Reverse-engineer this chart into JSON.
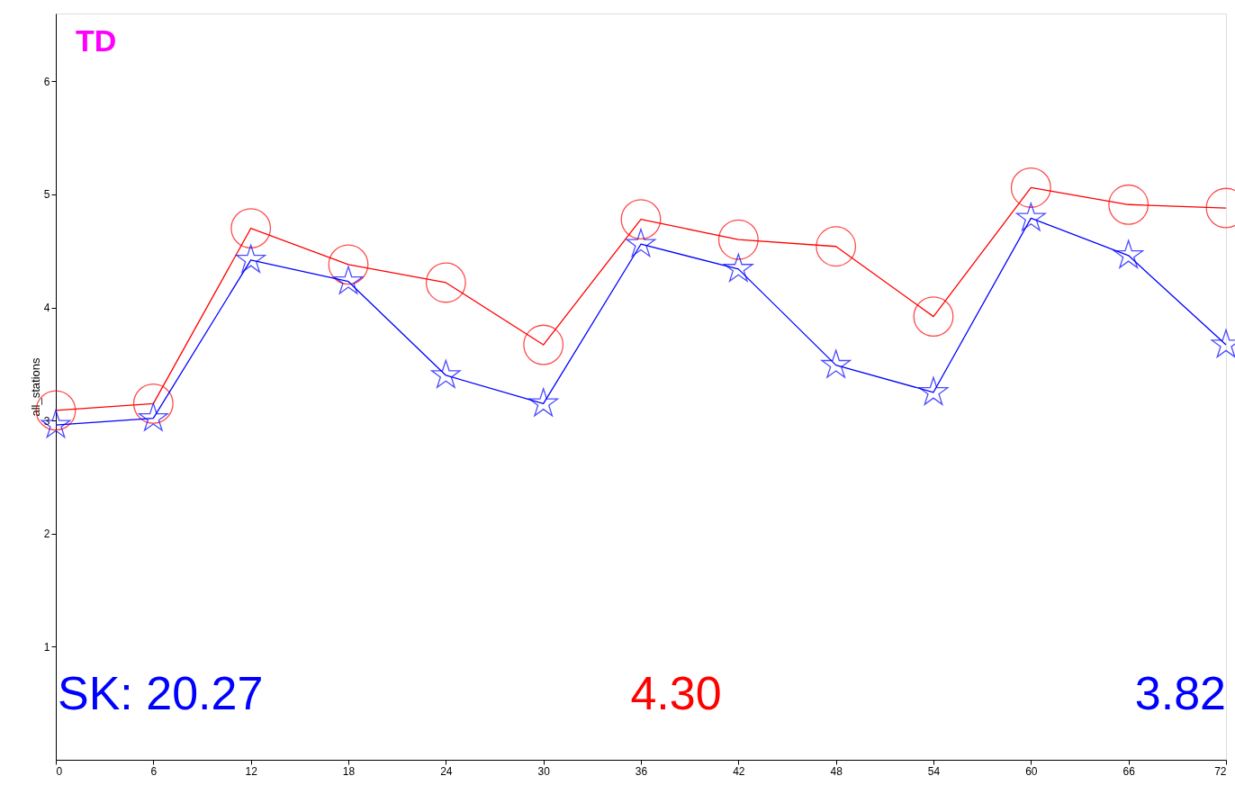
{
  "chart_data": {
    "type": "line",
    "title": "TD",
    "ylabel": "all_stations",
    "x": [
      0,
      6,
      12,
      18,
      24,
      30,
      36,
      42,
      48,
      54,
      60,
      66,
      72
    ],
    "series": [
      {
        "color": "#ff0000",
        "marker": "circle",
        "values": [
          3.09,
          3.15,
          4.7,
          4.38,
          4.22,
          3.67,
          4.78,
          4.6,
          4.54,
          3.92,
          5.06,
          4.91,
          4.88
        ]
      },
      {
        "color": "#0000ff",
        "marker": "star",
        "values": [
          2.96,
          3.02,
          4.42,
          4.23,
          3.4,
          3.15,
          4.56,
          4.34,
          3.49,
          3.25,
          4.79,
          4.46,
          3.67
        ]
      }
    ],
    "xlim": [
      0,
      72
    ],
    "xticks": [
      0,
      6,
      12,
      18,
      24,
      30,
      36,
      42,
      48,
      54,
      60,
      66,
      72
    ],
    "ylim": [
      0,
      6.6
    ],
    "yticks": [
      1,
      2,
      3,
      4,
      5,
      6
    ],
    "grid": false,
    "line_style": "solid",
    "annotations": [
      "SK:  20.27",
      "4.30",
      "3.82"
    ]
  }
}
